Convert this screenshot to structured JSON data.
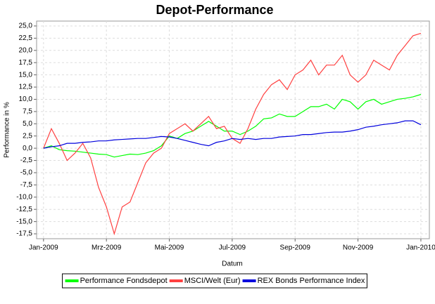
{
  "chart_data": {
    "type": "line",
    "title": "Depot-Performance",
    "x_label": "Datum",
    "y_label": "Performance in %",
    "x": [
      0,
      0.25,
      0.5,
      0.75,
      1,
      1.25,
      1.5,
      1.75,
      2,
      2.25,
      2.5,
      2.75,
      3,
      3.25,
      3.5,
      3.75,
      4,
      4.25,
      4.5,
      4.75,
      5,
      5.25,
      5.5,
      5.75,
      6,
      6.25,
      6.5,
      6.75,
      7,
      7.25,
      7.5,
      7.75,
      8,
      8.25,
      8.5,
      8.75,
      9,
      9.25,
      9.5,
      9.75,
      10,
      10.25,
      10.5,
      10.75,
      11,
      11.25,
      11.5,
      11.75,
      12
    ],
    "xlim": [
      -0.22,
      12.27
    ],
    "xticks": [
      {
        "value": 0,
        "label": "Jan-2009"
      },
      {
        "value": 2,
        "label": "Mrz-2009"
      },
      {
        "value": 4,
        "label": "Mai-2009"
      },
      {
        "value": 6,
        "label": "Jul-2009"
      },
      {
        "value": 8,
        "label": "Sep-2009"
      },
      {
        "value": 10,
        "label": "Nov-2009"
      },
      {
        "value": 12,
        "label": "Jan-2010"
      }
    ],
    "ylim": [
      -18.5,
      26
    ],
    "yticks": [
      {
        "value": -17.5,
        "label": "-17,5"
      },
      {
        "value": -15,
        "label": "-15,0"
      },
      {
        "value": -12.5,
        "label": "-12,5"
      },
      {
        "value": -10,
        "label": "-10,0"
      },
      {
        "value": -7.5,
        "label": "-7,5"
      },
      {
        "value": -5,
        "label": "-5,0"
      },
      {
        "value": -2.5,
        "label": "-2,5"
      },
      {
        "value": 0,
        "label": "0,0"
      },
      {
        "value": 2.5,
        "label": "2,5"
      },
      {
        "value": 5,
        "label": "5,0"
      },
      {
        "value": 7.5,
        "label": "7,5"
      },
      {
        "value": 10,
        "label": "10,0"
      },
      {
        "value": 12.5,
        "label": "12,5"
      },
      {
        "value": 15,
        "label": "15,0"
      },
      {
        "value": 17.5,
        "label": "17,5"
      },
      {
        "value": 20,
        "label": "20,0"
      },
      {
        "value": 22.5,
        "label": "22,5"
      },
      {
        "value": 25,
        "label": "25,0"
      }
    ],
    "grid": true,
    "legend": "bottom",
    "series": [
      {
        "name": "Performance Fondsdepot",
        "color": "#00ff00",
        "values": [
          0,
          0.5,
          -0.3,
          -0.5,
          -0.6,
          -0.8,
          -1,
          -1.2,
          -1.3,
          -1.8,
          -1.5,
          -1.2,
          -1.3,
          -1,
          -0.5,
          0.5,
          2.5,
          2,
          3,
          3.5,
          4.5,
          5.5,
          4.5,
          3.5,
          3.5,
          2.8,
          3.5,
          4.5,
          6,
          6.2,
          7,
          6.5,
          6.5,
          7.5,
          8.5,
          8.5,
          9,
          8,
          10,
          9.5,
          8,
          9.5,
          10,
          9,
          9.5,
          10,
          10.2,
          10.5,
          11
        ]
      },
      {
        "name": "MSCI/Welt (Eur)",
        "color": "#ff4040",
        "values": [
          0,
          4,
          1,
          -2.5,
          -1,
          1,
          -2,
          -8,
          -12,
          -17.5,
          -12,
          -11,
          -7,
          -3,
          -1,
          0,
          3,
          4,
          5,
          3.5,
          5,
          6.5,
          4,
          4.5,
          2,
          1,
          4,
          8,
          11,
          13,
          14,
          12,
          15,
          16,
          18,
          15,
          17,
          17,
          19,
          15,
          13.5,
          15,
          18,
          17,
          16,
          19,
          21,
          23,
          23.5
        ]
      },
      {
        "name": "REX Bonds Performance Index",
        "color": "#0000dd",
        "values": [
          0,
          0.3,
          0.5,
          1,
          1,
          1.2,
          1.3,
          1.5,
          1.5,
          1.7,
          1.8,
          1.9,
          2,
          2,
          2.2,
          2.4,
          2.3,
          2,
          1.6,
          1.2,
          0.8,
          0.5,
          1.2,
          1.5,
          2,
          1.8,
          2,
          1.8,
          2,
          2,
          2.3,
          2.4,
          2.5,
          2.8,
          2.8,
          3,
          3.2,
          3.3,
          3.3,
          3.5,
          3.8,
          4.3,
          4.5,
          4.8,
          5,
          5.2,
          5.6,
          5.6,
          4.8
        ]
      }
    ]
  }
}
